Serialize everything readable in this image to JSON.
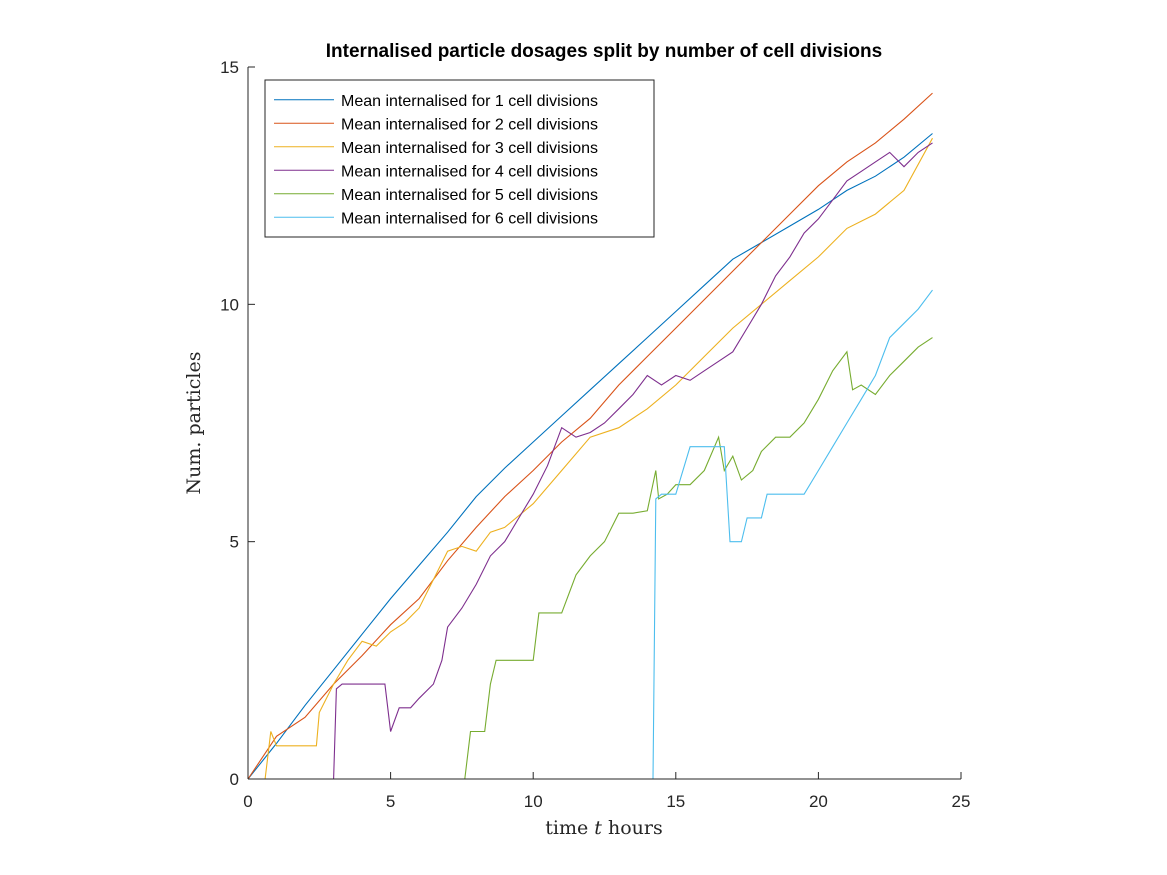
{
  "chart_data": {
    "type": "line",
    "title": "Internalised particle dosages split by number of cell divisions",
    "xlabel_main": "time ",
    "xlabel_var": "t",
    "xlabel_unit": " hours",
    "ylabel": "Num. particles",
    "xlim": [
      0,
      25
    ],
    "ylim": [
      0,
      15
    ],
    "xticks": [
      "0",
      "5",
      "10",
      "15",
      "20",
      "25"
    ],
    "yticks": [
      "0",
      "5",
      "10",
      "15"
    ],
    "grid": false,
    "legend_position": "top-left",
    "series": [
      {
        "name": "Mean internalised for 1 cell divisions",
        "color": "#0072BD",
        "points": [
          [
            0,
            0
          ],
          [
            1,
            0.75
          ],
          [
            2,
            1.55
          ],
          [
            3,
            2.3
          ],
          [
            4,
            3.05
          ],
          [
            5,
            3.8
          ],
          [
            6,
            4.5
          ],
          [
            7,
            5.2
          ],
          [
            8,
            5.95
          ],
          [
            9,
            6.55
          ],
          [
            10,
            7.1
          ],
          [
            11,
            7.65
          ],
          [
            12,
            8.2
          ],
          [
            13,
            8.75
          ],
          [
            14,
            9.3
          ],
          [
            15,
            9.85
          ],
          [
            16,
            10.4
          ],
          [
            17,
            10.95
          ],
          [
            18,
            11.3
          ],
          [
            19,
            11.65
          ],
          [
            20,
            12.0
          ],
          [
            21,
            12.4
          ],
          [
            22,
            12.7
          ],
          [
            23,
            13.1
          ],
          [
            24,
            13.6
          ]
        ]
      },
      {
        "name": "Mean internalised for 2 cell divisions",
        "color": "#D95319",
        "points": [
          [
            0,
            0
          ],
          [
            1,
            0.9
          ],
          [
            2,
            1.3
          ],
          [
            3,
            2.0
          ],
          [
            4,
            2.6
          ],
          [
            5,
            3.25
          ],
          [
            6,
            3.8
          ],
          [
            7,
            4.6
          ],
          [
            8,
            5.3
          ],
          [
            9,
            5.95
          ],
          [
            10,
            6.5
          ],
          [
            11,
            7.1
          ],
          [
            12,
            7.6
          ],
          [
            13,
            8.3
          ],
          [
            14,
            8.9
          ],
          [
            15,
            9.5
          ],
          [
            16,
            10.1
          ],
          [
            17,
            10.7
          ],
          [
            18,
            11.3
          ],
          [
            19,
            11.9
          ],
          [
            20,
            12.5
          ],
          [
            21,
            13.0
          ],
          [
            22,
            13.4
          ],
          [
            23,
            13.9
          ],
          [
            24,
            14.45
          ]
        ]
      },
      {
        "name": "Mean internalised for 3 cell divisions",
        "color": "#EDB120",
        "points": [
          [
            0,
            0
          ],
          [
            0.6,
            0
          ],
          [
            0.8,
            1.0
          ],
          [
            1,
            0.7
          ],
          [
            1.5,
            0.7
          ],
          [
            2.4,
            0.7
          ],
          [
            2.5,
            1.4
          ],
          [
            3,
            2.0
          ],
          [
            3.5,
            2.5
          ],
          [
            4,
            2.9
          ],
          [
            4.5,
            2.8
          ],
          [
            5,
            3.1
          ],
          [
            5.5,
            3.3
          ],
          [
            6,
            3.6
          ],
          [
            6.5,
            4.2
          ],
          [
            7,
            4.8
          ],
          [
            7.5,
            4.9
          ],
          [
            8,
            4.8
          ],
          [
            8.5,
            5.2
          ],
          [
            9,
            5.3
          ],
          [
            10,
            5.8
          ],
          [
            11,
            6.5
          ],
          [
            12,
            7.2
          ],
          [
            13,
            7.4
          ],
          [
            14,
            7.8
          ],
          [
            15,
            8.3
          ],
          [
            16,
            8.9
          ],
          [
            17,
            9.5
          ],
          [
            18,
            10.0
          ],
          [
            19,
            10.5
          ],
          [
            20,
            11.0
          ],
          [
            21,
            11.6
          ],
          [
            22,
            11.9
          ],
          [
            23,
            12.4
          ],
          [
            24,
            13.5
          ]
        ]
      },
      {
        "name": "Mean internalised for 4 cell divisions",
        "color": "#7E2F8E",
        "points": [
          [
            0,
            0
          ],
          [
            3,
            0
          ],
          [
            3.1,
            1.9
          ],
          [
            3.3,
            2.0
          ],
          [
            4,
            2.0
          ],
          [
            4.8,
            2.0
          ],
          [
            5,
            1.0
          ],
          [
            5.3,
            1.5
          ],
          [
            5.7,
            1.5
          ],
          [
            6,
            1.7
          ],
          [
            6.5,
            2.0
          ],
          [
            6.8,
            2.5
          ],
          [
            7,
            3.2
          ],
          [
            7.5,
            3.6
          ],
          [
            8,
            4.1
          ],
          [
            8.5,
            4.7
          ],
          [
            9,
            5.0
          ],
          [
            9.5,
            5.5
          ],
          [
            10,
            6.0
          ],
          [
            10.5,
            6.6
          ],
          [
            11,
            7.4
          ],
          [
            11.5,
            7.2
          ],
          [
            12,
            7.3
          ],
          [
            12.5,
            7.5
          ],
          [
            13,
            7.8
          ],
          [
            13.5,
            8.1
          ],
          [
            14,
            8.5
          ],
          [
            14.5,
            8.3
          ],
          [
            15,
            8.5
          ],
          [
            15.5,
            8.4
          ],
          [
            16,
            8.6
          ],
          [
            16.5,
            8.8
          ],
          [
            17,
            9.0
          ],
          [
            17.5,
            9.5
          ],
          [
            18,
            10.0
          ],
          [
            18.5,
            10.6
          ],
          [
            19,
            11.0
          ],
          [
            19.5,
            11.5
          ],
          [
            20,
            11.8
          ],
          [
            20.5,
            12.2
          ],
          [
            21,
            12.6
          ],
          [
            21.5,
            12.8
          ],
          [
            22,
            13.0
          ],
          [
            22.5,
            13.2
          ],
          [
            23,
            12.9
          ],
          [
            23.5,
            13.2
          ],
          [
            24,
            13.4
          ]
        ]
      },
      {
        "name": "Mean internalised for 5 cell divisions",
        "color": "#77AC30",
        "points": [
          [
            0,
            0
          ],
          [
            7.6,
            0
          ],
          [
            7.8,
            1.0
          ],
          [
            8.3,
            1.0
          ],
          [
            8.5,
            2.0
          ],
          [
            8.7,
            2.5
          ],
          [
            9,
            2.5
          ],
          [
            10,
            2.5
          ],
          [
            10.2,
            3.5
          ],
          [
            11,
            3.5
          ],
          [
            11.5,
            4.3
          ],
          [
            12,
            4.7
          ],
          [
            12.5,
            5.0
          ],
          [
            13,
            5.6
          ],
          [
            13.5,
            5.6
          ],
          [
            14,
            5.65
          ],
          [
            14.3,
            6.5
          ],
          [
            14.4,
            5.9
          ],
          [
            14.7,
            6.0
          ],
          [
            15,
            6.2
          ],
          [
            15.5,
            6.2
          ],
          [
            16,
            6.5
          ],
          [
            16.5,
            7.2
          ],
          [
            16.7,
            6.5
          ],
          [
            17,
            6.8
          ],
          [
            17.3,
            6.3
          ],
          [
            17.7,
            6.5
          ],
          [
            18,
            6.9
          ],
          [
            18.5,
            7.2
          ],
          [
            19,
            7.2
          ],
          [
            19.5,
            7.5
          ],
          [
            20,
            8.0
          ],
          [
            20.5,
            8.6
          ],
          [
            21,
            9.0
          ],
          [
            21.2,
            8.2
          ],
          [
            21.5,
            8.3
          ],
          [
            22,
            8.1
          ],
          [
            22.5,
            8.5
          ],
          [
            23,
            8.8
          ],
          [
            23.5,
            9.1
          ],
          [
            24,
            9.3
          ]
        ]
      },
      {
        "name": "Mean internalised for 6 cell divisions",
        "color": "#4DBEEE",
        "points": [
          [
            0,
            0
          ],
          [
            14.2,
            0
          ],
          [
            14.3,
            5.9
          ],
          [
            14.5,
            6.0
          ],
          [
            15,
            6.0
          ],
          [
            15.5,
            7.0
          ],
          [
            16,
            7.0
          ],
          [
            16.7,
            7.0
          ],
          [
            16.9,
            5.0
          ],
          [
            17.3,
            5.0
          ],
          [
            17.5,
            5.5
          ],
          [
            18,
            5.5
          ],
          [
            18.2,
            6.0
          ],
          [
            18.5,
            6.0
          ],
          [
            19,
            6.0
          ],
          [
            19.5,
            6.0
          ],
          [
            20,
            6.5
          ],
          [
            20.5,
            7.0
          ],
          [
            21,
            7.5
          ],
          [
            21.5,
            8.0
          ],
          [
            22,
            8.5
          ],
          [
            22.5,
            9.3
          ],
          [
            23,
            9.6
          ],
          [
            23.5,
            9.9
          ],
          [
            24,
            10.3
          ]
        ]
      }
    ]
  }
}
